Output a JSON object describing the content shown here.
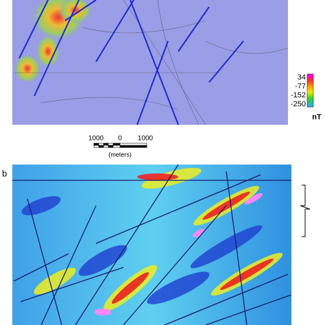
{
  "panel_a": {
    "colorbar": {
      "labels": [
        "34",
        "-77",
        "-152",
        "-250"
      ],
      "unit": "nT"
    },
    "scale_bar": {
      "labels": [
        "1000",
        "0",
        "1000"
      ],
      "unit": "(meters)"
    }
  },
  "panel_b": {
    "label": "b"
  }
}
